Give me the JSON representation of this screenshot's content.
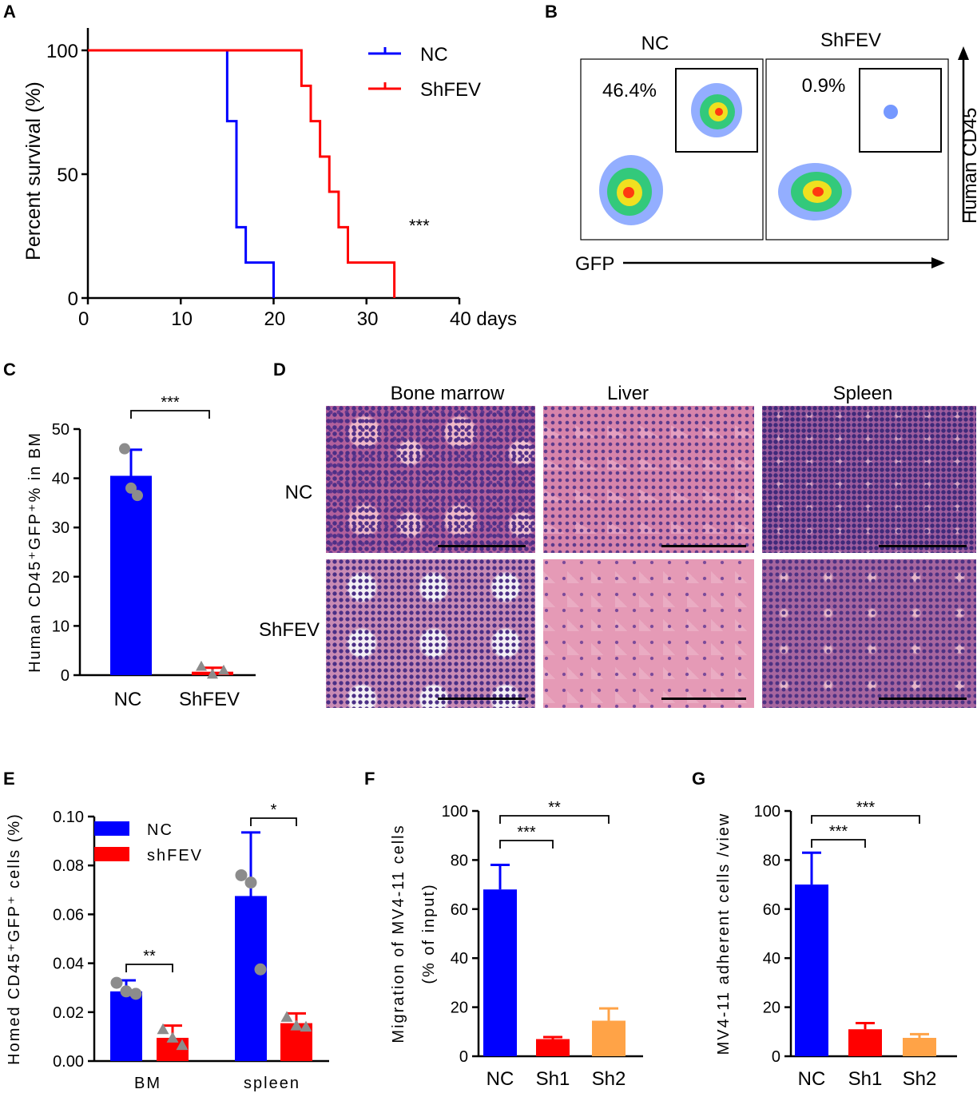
{
  "panel_labels": [
    "A",
    "B",
    "C",
    "D",
    "E",
    "F",
    "G"
  ],
  "colors": {
    "blue": "#0000ff",
    "red": "#ff0000",
    "orange": "#ffa347",
    "gray": "#8c8c8c"
  },
  "panelB": {
    "col1": "NC",
    "col2": "ShFEV",
    "pct1": "46.4%",
    "pct2": "0.9%",
    "xlabel": "GFP",
    "ylabel": "Human CD45"
  },
  "panelD": {
    "cols": [
      "Bone marrow",
      "Liver",
      "Spleen"
    ],
    "rows": [
      "NC",
      "ShFEV"
    ]
  },
  "chart_data": [
    {
      "id": "A",
      "type": "line",
      "ylabel": "Percent survival (%)",
      "xlim": [
        0,
        40
      ],
      "ylim": [
        0,
        100
      ],
      "xticks": [
        "0",
        "10",
        "20",
        "30",
        "40 days"
      ],
      "yticks": [
        "0",
        "50",
        "100"
      ],
      "significance": "***",
      "series": [
        {
          "name": "NC",
          "color": "#0000ff",
          "points": [
            [
              0,
              100
            ],
            [
              15,
              100
            ],
            [
              15,
              71.4
            ],
            [
              16,
              71.4
            ],
            [
              16,
              28.6
            ],
            [
              17,
              28.6
            ],
            [
              17,
              14.3
            ],
            [
              20,
              14.3
            ],
            [
              20,
              0
            ]
          ]
        },
        {
          "name": "ShFEV",
          "color": "#ff0000",
          "points": [
            [
              0,
              100
            ],
            [
              23,
              100
            ],
            [
              23,
              85.7
            ],
            [
              24,
              85.7
            ],
            [
              24,
              71.4
            ],
            [
              25,
              71.4
            ],
            [
              25,
              57.1
            ],
            [
              26,
              57.1
            ],
            [
              26,
              42.9
            ],
            [
              27,
              42.9
            ],
            [
              27,
              28.6
            ],
            [
              28,
              28.6
            ],
            [
              28,
              14.3
            ],
            [
              33,
              14.3
            ],
            [
              33,
              0
            ]
          ]
        }
      ]
    },
    {
      "id": "C",
      "type": "bar",
      "ylabel": "Human CD45⁺GFP⁺% in BM",
      "ylim": [
        0,
        50
      ],
      "yticks": [
        "0",
        "10",
        "20",
        "30",
        "40",
        "50"
      ],
      "categories": [
        "NC",
        "ShFEV"
      ],
      "values": [
        40.5,
        0.7
      ],
      "errors": [
        5.3,
        0.8
      ],
      "colors": [
        "#0000ff",
        "#ff0000"
      ],
      "points": [
        [
          46,
          38,
          36.5
        ],
        [
          1.8,
          0.2,
          1.0
        ]
      ],
      "markers": [
        "circle",
        "triangle"
      ],
      "significance": [
        {
          "pair": [
            0,
            1
          ],
          "label": "***"
        }
      ]
    },
    {
      "id": "E",
      "type": "bar",
      "ylabel": "Homed CD45⁺GFP⁺ cells (%)",
      "ylim": [
        0,
        0.1
      ],
      "yticks": [
        "0.00",
        "0.02",
        "0.04",
        "0.06",
        "0.08",
        "0.10"
      ],
      "categories": [
        "BM",
        "spleen"
      ],
      "series": [
        {
          "name": "NC",
          "color": "#0000ff",
          "values": [
            0.0285,
            0.0675
          ],
          "errors": [
            0.0045,
            0.026
          ],
          "points": [
            [
              0.032,
              0.0285,
              0.0275
            ],
            [
              0.076,
              0.073,
              0.0375
            ]
          ],
          "marker": "circle"
        },
        {
          "name": "shFEV",
          "color": "#ff0000",
          "values": [
            0.0095,
            0.0155
          ],
          "errors": [
            0.005,
            0.004
          ],
          "points": [
            [
              0.013,
              0.0095,
              0.0065
            ],
            [
              0.018,
              0.0145,
              0.014
            ]
          ],
          "marker": "triangle"
        }
      ],
      "legend": [
        "NC",
        "shFEV"
      ],
      "significance": [
        {
          "group": 0,
          "label": "**"
        },
        {
          "group": 1,
          "label": "*"
        }
      ]
    },
    {
      "id": "F",
      "type": "bar",
      "ylabel_lines": [
        "Migration of MV4-11 cells",
        "(% of input)"
      ],
      "ylim": [
        0,
        100
      ],
      "yticks": [
        "0",
        "20",
        "40",
        "60",
        "80",
        "100"
      ],
      "categories": [
        "NC",
        "Sh1",
        "Sh2"
      ],
      "values": [
        68,
        7,
        14.5
      ],
      "errors": [
        10,
        0.8,
        5
      ],
      "colors": [
        "#0000ff",
        "#ff0000",
        "#ffa347"
      ],
      "significance": [
        {
          "pair": [
            0,
            1
          ],
          "label": "***"
        },
        {
          "pair": [
            0,
            2
          ],
          "label": "**"
        }
      ]
    },
    {
      "id": "G",
      "type": "bar",
      "ylabel": "MV4-11 adherent cells /view",
      "ylim": [
        0,
        100
      ],
      "yticks": [
        "0",
        "20",
        "40",
        "60",
        "80",
        "100"
      ],
      "categories": [
        "NC",
        "Sh1",
        "Sh2"
      ],
      "values": [
        70,
        11,
        7.5
      ],
      "errors": [
        13,
        2.5,
        1.5
      ],
      "colors": [
        "#0000ff",
        "#ff0000",
        "#ffa347"
      ],
      "significance": [
        {
          "pair": [
            0,
            1
          ],
          "label": "***"
        },
        {
          "pair": [
            0,
            2
          ],
          "label": "***"
        }
      ]
    }
  ]
}
